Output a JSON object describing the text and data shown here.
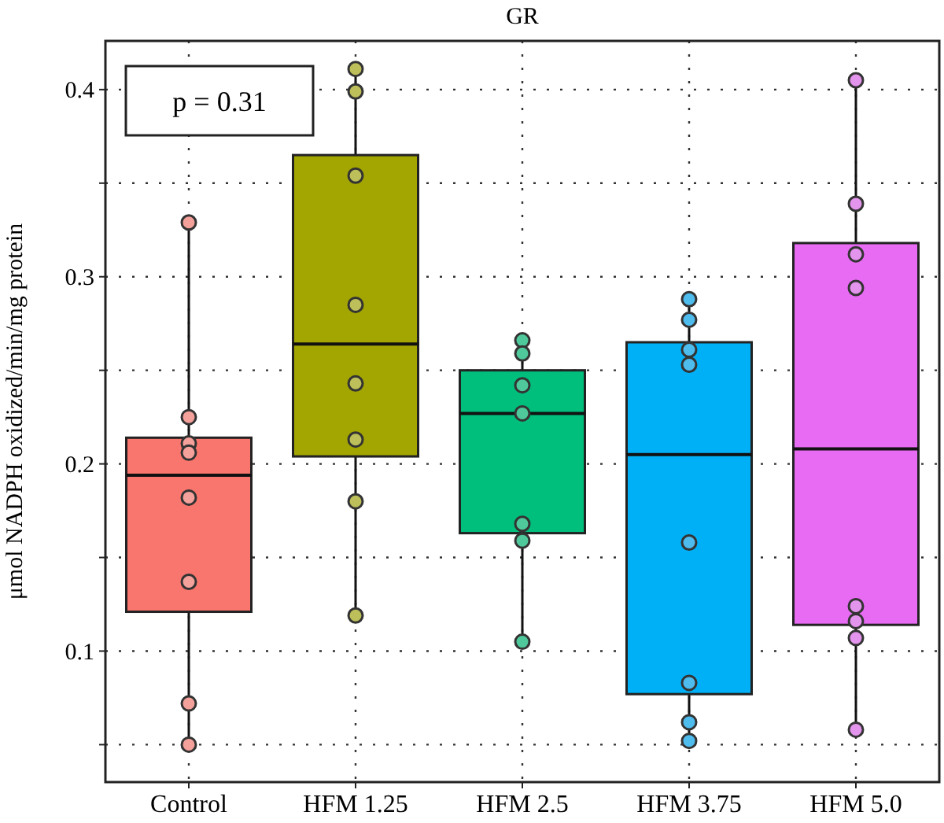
{
  "chart_data": {
    "type": "box",
    "title": "GR",
    "ylabel": "μmol NADPH oxidized/min/mg protein",
    "categories": [
      "Control",
      "HFM 1.25",
      "HFM 2.5",
      "HFM 3.75",
      "HFM 5.0"
    ],
    "ylim": [
      0.03,
      0.426
    ],
    "yticks": [
      {
        "value": 0.05,
        "label": null
      },
      0.1,
      {
        "value": 0.15,
        "label": null
      },
      0.2,
      {
        "value": 0.25,
        "label": null
      },
      0.3,
      {
        "value": 0.35,
        "label": null
      },
      0.4
    ],
    "grid": true,
    "annotations": [
      "p = 0.31"
    ],
    "series": [
      {
        "colors": [
          "#f8766d",
          "#a3a500",
          "#00bf7d",
          "#00b0f6",
          "#e76bf3"
        ],
        "boxes": [
          {
            "low": 0.05,
            "q1": 0.121,
            "median": 0.194,
            "q3": 0.214,
            "high": 0.326
          },
          {
            "low": 0.119,
            "q1": 0.204,
            "median": 0.264,
            "q3": 0.365,
            "high": 0.41
          },
          {
            "low": 0.106,
            "q1": 0.163,
            "median": 0.227,
            "q3": 0.25,
            "high": 0.264
          },
          {
            "low": 0.051,
            "q1": 0.077,
            "median": 0.205,
            "q3": 0.265,
            "high": 0.287
          },
          {
            "low": 0.059,
            "q1": 0.114,
            "median": 0.208,
            "q3": 0.318,
            "high": 0.405
          }
        ]
      },
      {
        "type": "scatter",
        "marker": "circle",
        "x": [
          "Control",
          "Control",
          "Control",
          "Control",
          "Control",
          "Control",
          "Control",
          "Control",
          "HFM 1.25",
          "HFM 1.25",
          "HFM 1.25",
          "HFM 1.25",
          "HFM 1.25",
          "HFM 1.25",
          "HFM 1.25",
          "HFM 1.25",
          "HFM 2.5",
          "HFM 2.5",
          "HFM 2.5",
          "HFM 2.5",
          "HFM 2.5",
          "HFM 2.5",
          "HFM 2.5",
          "HFM 3.75",
          "HFM 3.75",
          "HFM 3.75",
          "HFM 3.75",
          "HFM 3.75",
          "HFM 3.75",
          "HFM 3.75",
          "HFM 3.75",
          "HFM 5.0",
          "HFM 5.0",
          "HFM 5.0",
          "HFM 5.0",
          "HFM 5.0",
          "HFM 5.0",
          "HFM 5.0",
          "HFM 5.0"
        ],
        "values": [
          0.329,
          0.225,
          0.211,
          0.206,
          0.182,
          0.137,
          0.072,
          0.05,
          0.411,
          0.399,
          0.354,
          0.285,
          0.243,
          0.213,
          0.18,
          0.119,
          0.266,
          0.259,
          0.242,
          0.227,
          0.168,
          0.159,
          0.105,
          0.288,
          0.277,
          0.261,
          0.253,
          0.158,
          0.083,
          0.062,
          0.052,
          0.405,
          0.339,
          0.312,
          0.294,
          0.124,
          0.116,
          0.107,
          0.058
        ],
        "colors": [
          "#f4a19b",
          "#f4a19b",
          "#f4a19b",
          "#f4a19b",
          "#f4a19b",
          "#f4a19b",
          "#f4a19b",
          "#f4a19b",
          "#bdbf5a",
          "#bdbf5a",
          "#bdbf5a",
          "#bdbf5a",
          "#bdbf5a",
          "#bdbf5a",
          "#bdbf5a",
          "#bdbf5a",
          "#4fc99b",
          "#4fc99b",
          "#4fc99b",
          "#4fc99b",
          "#4fc99b",
          "#4fc99b",
          "#4fc99b",
          "#4fbcee",
          "#4fbcee",
          "#4fbcee",
          "#4fbcee",
          "#4fbcee",
          "#4fbcee",
          "#4fbcee",
          "#4fbcee",
          "#e394ec",
          "#e394ec",
          "#e394ec",
          "#e394ec",
          "#e394ec",
          "#e394ec",
          "#e394ec",
          "#e394ec"
        ]
      }
    ]
  }
}
